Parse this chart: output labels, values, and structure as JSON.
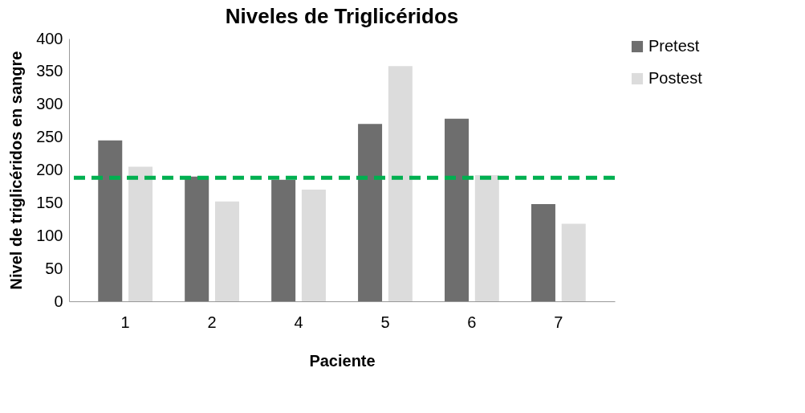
{
  "chart_data": {
    "type": "bar",
    "title": "Niveles de Triglicéridos",
    "xlabel": "Paciente",
    "ylabel": "Nivel de triglicéridos en sangre",
    "categories": [
      "1",
      "2",
      "4",
      "5",
      "6",
      "7"
    ],
    "series": [
      {
        "name": "Pretest",
        "color": "#6e6e6e",
        "values": [
          245,
          190,
          185,
          270,
          278,
          148
        ]
      },
      {
        "name": "Postest",
        "color": "#dcdcdc",
        "values": [
          205,
          152,
          170,
          358,
          192,
          118
        ]
      }
    ],
    "ylim": [
      0,
      400
    ],
    "yticks": [
      0,
      50,
      100,
      150,
      200,
      250,
      300,
      350,
      400
    ],
    "ref_lines": [
      {
        "axis": "y",
        "value": 188,
        "color": "#00b050",
        "line_style": "dashed"
      }
    ],
    "grid": false,
    "legend": "right"
  }
}
